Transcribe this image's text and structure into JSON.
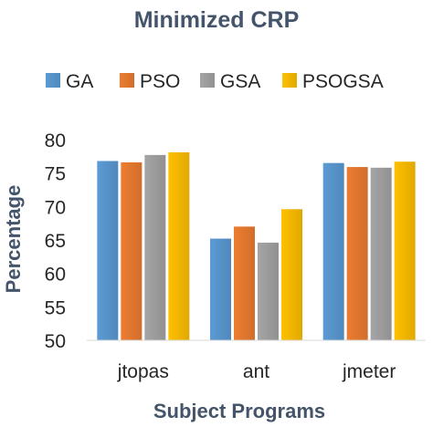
{
  "chart_data": {
    "type": "bar",
    "title": "Minimized CRP",
    "xlabel": "Subject Programs",
    "ylabel": "Percentage",
    "ylim": [
      50,
      80
    ],
    "yticks": [
      50,
      55,
      60,
      65,
      70,
      75,
      80
    ],
    "grid": false,
    "legend_position": "top",
    "categories": [
      "jtopas",
      "ant",
      "jmeter"
    ],
    "series": [
      {
        "name": "GA",
        "color": "#5b9bd5",
        "values": [
          76.8,
          65.2,
          76.5
        ]
      },
      {
        "name": "PSO",
        "color": "#ed7d31",
        "values": [
          76.6,
          67.0,
          75.9
        ]
      },
      {
        "name": "GSA",
        "color": "#a5a5a5",
        "values": [
          77.7,
          64.6,
          75.8
        ]
      },
      {
        "name": "PSOGSA",
        "color": "#ffc000",
        "values": [
          78.1,
          69.6,
          76.7
        ]
      }
    ]
  }
}
